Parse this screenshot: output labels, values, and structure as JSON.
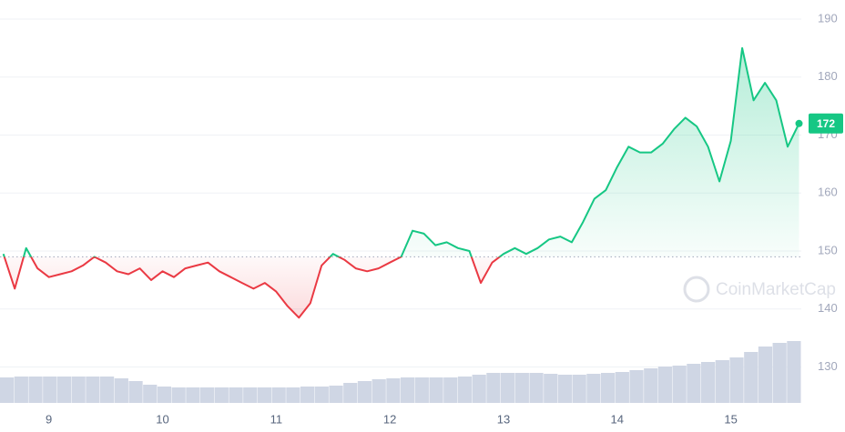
{
  "chart_data": {
    "type": "line",
    "x": [
      8.6,
      8.7,
      8.8,
      8.9,
      9.0,
      9.1,
      9.2,
      9.3,
      9.4,
      9.5,
      9.6,
      9.7,
      9.8,
      9.9,
      10.0,
      10.1,
      10.2,
      10.3,
      10.4,
      10.5,
      10.6,
      10.7,
      10.8,
      10.9,
      11.0,
      11.1,
      11.2,
      11.3,
      11.4,
      11.5,
      11.6,
      11.7,
      11.8,
      11.9,
      12.0,
      12.1,
      12.2,
      12.3,
      12.4,
      12.5,
      12.6,
      12.7,
      12.8,
      12.9,
      13.0,
      13.1,
      13.2,
      13.3,
      13.4,
      13.5,
      13.6,
      13.7,
      13.8,
      13.9,
      14.0,
      14.1,
      14.2,
      14.3,
      14.4,
      14.5,
      14.6,
      14.7,
      14.8,
      14.9,
      15.0,
      15.1,
      15.2,
      15.3,
      15.4,
      15.5,
      15.6
    ],
    "values": [
      149.5,
      143.5,
      150.5,
      147,
      145.5,
      146,
      146.5,
      147.5,
      149,
      148,
      146.5,
      146,
      147,
      145,
      146.5,
      145.5,
      147,
      147.5,
      148,
      146.5,
      145.5,
      144.5,
      143.5,
      144.5,
      143,
      140.5,
      138.5,
      141,
      147.5,
      149.5,
      148.5,
      147,
      146.5,
      147,
      148,
      149,
      153.5,
      153,
      151,
      151.5,
      150.5,
      150,
      144.5,
      148,
      149.5,
      150.5,
      149.5,
      150.5,
      152,
      152.5,
      151.5,
      155,
      159,
      160.5,
      164.5,
      168,
      167,
      167,
      168.5,
      171,
      173,
      171.5,
      168,
      162,
      169,
      185,
      176,
      179,
      176,
      168,
      172
    ],
    "baseline": 149,
    "up_color": "#16c784",
    "down_color": "#ea3943",
    "current_price": 172,
    "xlim": [
      8.57,
      15.62
    ],
    "xticks": [
      9,
      10,
      11,
      12,
      13,
      14,
      15
    ],
    "ylim": [
      123.8,
      193.3
    ],
    "yticks": [
      130,
      140,
      150,
      160,
      170,
      180,
      190
    ],
    "grid": true,
    "volume": {
      "color": "#cfd6e4",
      "ylim": [
        0,
        100
      ],
      "values": [
        28,
        29,
        29,
        29,
        29,
        29,
        29,
        29,
        27,
        24,
        20,
        18,
        17,
        17,
        17,
        17,
        17,
        17,
        17,
        17,
        17,
        18,
        18,
        19,
        22,
        24,
        26,
        27,
        28,
        28,
        28,
        28,
        29,
        31,
        33,
        33,
        33,
        33,
        32,
        31,
        31,
        32,
        33,
        34,
        36,
        38,
        40,
        41,
        43,
        45,
        47,
        50,
        56,
        62,
        66,
        68
      ]
    },
    "watermark": "CoinMarketCap"
  }
}
